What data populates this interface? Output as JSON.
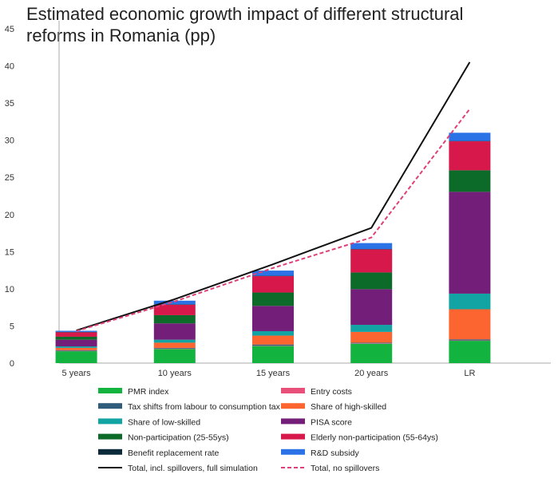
{
  "chart_data": {
    "type": "bar",
    "stacked": true,
    "title": "Estimated economic growth impact of different structural reforms in Romania (pp)",
    "categories": [
      "5 years",
      "10 years",
      "15 years",
      "20 years",
      "LR"
    ],
    "ylim": [
      0,
      45
    ],
    "yticks": [
      0,
      5,
      10,
      15,
      20,
      25,
      30,
      35,
      40,
      45
    ],
    "grid": false,
    "legend_position": "bottom",
    "series": [
      {
        "name": "PMR index",
        "color": "#12b33f",
        "values": [
          1.6,
          1.9,
          2.3,
          2.6,
          3.0
        ]
      },
      {
        "name": "Entry costs",
        "color": "#e8507a",
        "values": [
          0.05,
          0.05,
          0.05,
          0.05,
          0.05
        ]
      },
      {
        "name": "Tax shifts from labour to consumption tax",
        "color": "#2e5c7a",
        "values": [
          0.1,
          0.1,
          0.15,
          0.1,
          0.15
        ]
      },
      {
        "name": "Share of high-skilled",
        "color": "#fd6530",
        "values": [
          0.3,
          0.7,
          1.2,
          1.45,
          4.05
        ]
      },
      {
        "name": "Share of low-skilled",
        "color": "#12a3a3",
        "values": [
          0.2,
          0.4,
          0.6,
          0.95,
          2.1
        ]
      },
      {
        "name": "PISA score",
        "color": "#731e78",
        "values": [
          0.9,
          2.2,
          3.4,
          4.8,
          13.7
        ]
      },
      {
        "name": "Non-participation (25-55ys)",
        "color": "#0d6b2a",
        "values": [
          0.4,
          1.1,
          1.8,
          2.25,
          2.9
        ]
      },
      {
        "name": "Elderly non-participation (55-64ys)",
        "color": "#d6184a",
        "values": [
          0.6,
          1.4,
          2.2,
          3.1,
          3.9
        ]
      },
      {
        "name": "Benefit replacement rate",
        "color": "#0b2a3a",
        "values": [
          0.05,
          0.05,
          0.05,
          0.05,
          0.05
        ]
      },
      {
        "name": "R&D subsidy",
        "color": "#2a72e6",
        "values": [
          0.15,
          0.5,
          0.7,
          0.8,
          1.1
        ]
      }
    ],
    "lines": [
      {
        "name": "Total, incl. spillovers, full simulation",
        "color": "#111111",
        "style": "solid",
        "values": [
          4.4,
          8.6,
          13.3,
          18.2,
          40.5
        ]
      },
      {
        "name": "Total, no spillovers",
        "color": "#e0407a",
        "style": "dashed",
        "values": [
          4.3,
          8.3,
          12.8,
          16.9,
          34.2
        ]
      }
    ]
  }
}
